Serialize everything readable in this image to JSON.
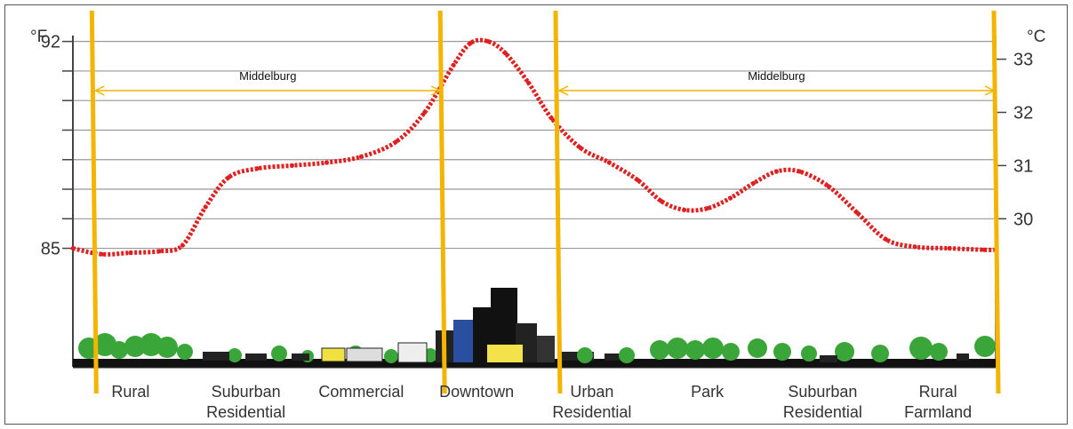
{
  "chart_data": {
    "type": "line",
    "title": "",
    "left_unit": "°F",
    "right_unit": "°C",
    "left_ticks": [
      {
        "label": "92",
        "value": 92
      },
      {
        "label": "85",
        "value": 85
      }
    ],
    "right_ticks": [
      {
        "label": "33",
        "value": 33
      },
      {
        "label": "32",
        "value": 32
      },
      {
        "label": "31",
        "value": 31
      },
      {
        "label": "30",
        "value": 30
      }
    ],
    "ylim_f": [
      80.99,
      92.2
    ],
    "grid": true,
    "zones": [
      {
        "lines": [
          "Rural"
        ],
        "x": 0.5
      },
      {
        "lines": [
          "Suburban",
          "Residential"
        ],
        "x": 1.5
      },
      {
        "lines": [
          "Commercial"
        ],
        "x": 2.5
      },
      {
        "lines": [
          "Downtown"
        ],
        "x": 3.5
      },
      {
        "lines": [
          "Urban",
          "Residential"
        ],
        "x": 4.5
      },
      {
        "lines": [
          "Park"
        ],
        "x": 5.5
      },
      {
        "lines": [
          "Suburban",
          "Residential"
        ],
        "x": 6.5
      },
      {
        "lines": [
          "Rural",
          "Farmland"
        ],
        "x": 7.5
      }
    ],
    "series": [
      {
        "color": "#e02020",
        "points": [
          [
            0.0,
            85.0
          ],
          [
            0.25,
            84.8
          ],
          [
            0.5,
            84.85
          ],
          [
            0.75,
            84.9
          ],
          [
            0.95,
            85.1
          ],
          [
            1.15,
            86.4
          ],
          [
            1.35,
            87.4
          ],
          [
            1.6,
            87.7
          ],
          [
            1.9,
            87.8
          ],
          [
            2.2,
            87.9
          ],
          [
            2.5,
            88.1
          ],
          [
            2.8,
            88.6
          ],
          [
            3.05,
            89.6
          ],
          [
            3.3,
            91.2
          ],
          [
            3.45,
            91.95
          ],
          [
            3.6,
            92.0
          ],
          [
            3.75,
            91.6
          ],
          [
            3.95,
            90.6
          ],
          [
            4.15,
            89.4
          ],
          [
            4.4,
            88.4
          ],
          [
            4.65,
            87.9
          ],
          [
            4.9,
            87.3
          ],
          [
            5.1,
            86.6
          ],
          [
            5.3,
            86.3
          ],
          [
            5.5,
            86.35
          ],
          [
            5.7,
            86.7
          ],
          [
            5.9,
            87.2
          ],
          [
            6.1,
            87.6
          ],
          [
            6.3,
            87.6
          ],
          [
            6.55,
            87.1
          ],
          [
            6.8,
            86.2
          ],
          [
            7.05,
            85.3
          ],
          [
            7.3,
            85.05
          ],
          [
            7.6,
            85.0
          ],
          [
            7.9,
            84.95
          ],
          [
            8.0,
            84.95
          ]
        ]
      }
    ],
    "annotations": [
      {
        "label": "Middelburg",
        "from": 0.18,
        "to": 3.2
      },
      {
        "label": "Middelburg",
        "from": 4.2,
        "to": 8.0
      }
    ],
    "divider_color": "#f5b400",
    "dividers": [
      0.18,
      3.2,
      4.2,
      8.0
    ]
  }
}
